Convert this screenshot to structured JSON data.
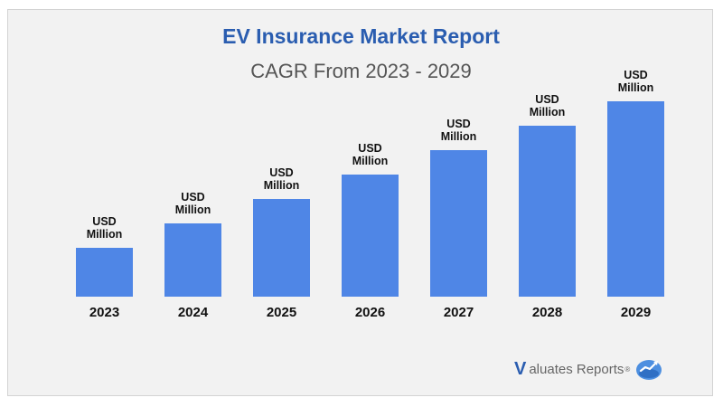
{
  "header": {
    "title": "EV Insurance Market Report",
    "subtitle": "CAGR From 2023 - 2029"
  },
  "chart_data": {
    "type": "bar",
    "title": "EV Insurance Market Report",
    "subtitle": "CAGR From 2023 - 2029",
    "categories": [
      "2023",
      "2024",
      "2025",
      "2026",
      "2027",
      "2028",
      "2029"
    ],
    "values": [
      20,
      30,
      40,
      50,
      60,
      70,
      80
    ],
    "values_note": "",
    "data_labels": [
      "USD Million",
      "USD Million",
      "USD Million",
      "USD Million",
      "USD Million",
      "USD Million",
      "USD Million"
    ],
    "xlabel": "",
    "ylabel": "",
    "ylim": [
      0,
      80
    ],
    "grid": false,
    "bar_color": "#4f86e6"
  },
  "brand": {
    "logo_letter": "V",
    "name": "aluates Reports",
    "registered": "®",
    "icon": "chart-globe-icon",
    "colors": {
      "primary": "#2a5db0",
      "text": "#666666",
      "icon": "#4d8fe0"
    }
  }
}
